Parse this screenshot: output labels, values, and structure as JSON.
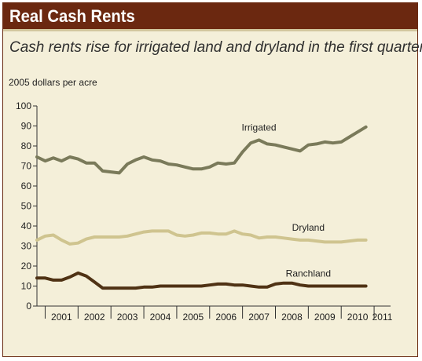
{
  "header": {
    "title": "Real Cash Rents"
  },
  "subtitle": "Cash rents rise for irrigated land and dryland in the first quarter.",
  "colors": {
    "title_bar": "#6b2810",
    "panel_bg": "#f4efd9",
    "irrigated": "#7a7a5a",
    "dryland": "#cfc48f",
    "ranchland": "#4f3214"
  },
  "chart_data": {
    "type": "line",
    "ylabel": "2005 dollars per acre",
    "ylim": [
      0,
      100
    ],
    "yticks": [
      0,
      10,
      20,
      30,
      40,
      50,
      60,
      70,
      80,
      90,
      100
    ],
    "xlim": [
      2000.75,
      2011.5
    ],
    "xtick_labels": [
      "2001",
      "2002",
      "2003",
      "2004",
      "2005",
      "2006",
      "2007",
      "2008",
      "2009",
      "2010",
      "2011"
    ],
    "grid": false,
    "x": [
      2000.75,
      2001.0,
      2001.25,
      2001.5,
      2001.75,
      2002.0,
      2002.25,
      2002.5,
      2002.75,
      2003.0,
      2003.25,
      2003.5,
      2003.75,
      2004.0,
      2004.25,
      2004.5,
      2004.75,
      2005.0,
      2005.25,
      2005.5,
      2005.75,
      2006.0,
      2006.25,
      2006.5,
      2006.75,
      2007.0,
      2007.25,
      2007.5,
      2007.75,
      2008.0,
      2008.25,
      2008.5,
      2008.75,
      2009.0,
      2009.25,
      2009.5,
      2009.75,
      2010.0,
      2010.25,
      2010.5,
      2010.75
    ],
    "series": [
      {
        "name": "Irrigated",
        "values": [
          74.5,
          72.5,
          74,
          72.5,
          74.5,
          73.5,
          71.5,
          71.5,
          67.5,
          67,
          66.5,
          71,
          73,
          74.5,
          73,
          72.5,
          71,
          70.5,
          69.5,
          68.5,
          68.5,
          69.5,
          71.5,
          71,
          71.5,
          77,
          81.5,
          83,
          81,
          80.5,
          79.5,
          78.5,
          77.5,
          80.5,
          81,
          82,
          81.5,
          82,
          84.5,
          87,
          89.5
        ]
      },
      {
        "name": "Dryland",
        "values": [
          33,
          35,
          35.5,
          33,
          31,
          31.5,
          33.5,
          34.5,
          34.5,
          34.5,
          34.5,
          35,
          36,
          37,
          37.5,
          37.5,
          37.5,
          35.5,
          35,
          35.5,
          36.5,
          36.5,
          36,
          36,
          37.5,
          36,
          35.5,
          34,
          34.5,
          34.5,
          34,
          33.5,
          33,
          33,
          32.5,
          32,
          32,
          32,
          32.5,
          33,
          33
        ]
      },
      {
        "name": "Ranchland",
        "values": [
          14,
          14,
          13,
          13,
          14.5,
          16.5,
          15,
          12,
          9,
          9,
          9,
          9,
          9,
          9.5,
          9.5,
          10,
          10,
          10,
          10,
          10,
          10,
          10.5,
          11,
          11,
          10.5,
          10.5,
          10,
          9.5,
          9.5,
          11,
          11.5,
          11.5,
          10.5,
          10,
          10,
          10,
          10,
          10,
          10,
          10,
          10
        ]
      }
    ],
    "series_label_anchor": [
      2007.5,
      2009.0,
      2009.0
    ]
  }
}
